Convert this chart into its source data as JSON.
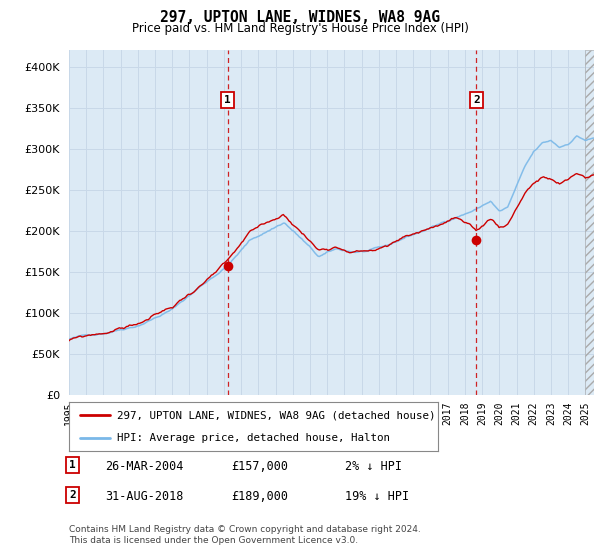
{
  "title": "297, UPTON LANE, WIDNES, WA8 9AG",
  "subtitle": "Price paid vs. HM Land Registry's House Price Index (HPI)",
  "legend_line1": "297, UPTON LANE, WIDNES, WA8 9AG (detached house)",
  "legend_line2": "HPI: Average price, detached house, Halton",
  "sale1_date": "26-MAR-2004",
  "sale1_price": 157000,
  "sale1_label": "1",
  "sale1_note": "2% ↓ HPI",
  "sale1_x": 2004.21,
  "sale2_date": "31-AUG-2018",
  "sale2_price": 189000,
  "sale2_label": "2",
  "sale2_note": "19% ↓ HPI",
  "sale2_x": 2018.67,
  "footer": "Contains HM Land Registry data © Crown copyright and database right 2024.\nThis data is licensed under the Open Government Licence v3.0.",
  "hpi_color": "#7ab8e8",
  "price_color": "#cc0000",
  "bg_color": "#dceaf5",
  "grid_color": "#c8d8e8",
  "outer_bg": "#e8eef5",
  "ylim": [
    0,
    420000
  ],
  "yticks": [
    0,
    50000,
    100000,
    150000,
    200000,
    250000,
    300000,
    350000,
    400000
  ],
  "xstart": 1995.0,
  "xend": 2025.5
}
